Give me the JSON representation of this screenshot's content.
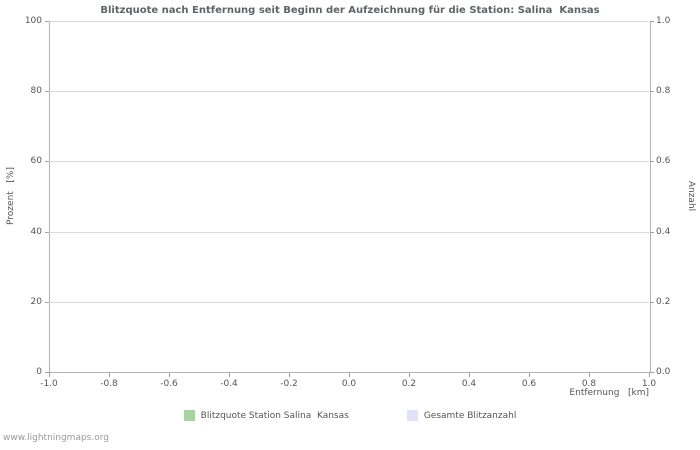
{
  "title": "Blitzquote nach Entfernung seit Beginn der Aufzeichnung für die Station: Salina  Kansas",
  "watermark": "www.lightningmaps.org",
  "axes": {
    "x_label": "Entfernung   [km]",
    "y_left_label": "Prozent   [%]",
    "y_right_label": "Anzahl"
  },
  "legend": [
    {
      "label": "Blitzquote Station Salina  Kansas",
      "color": "#a6d3a0"
    },
    {
      "label": "Gesamte Blitzanzahl",
      "color": "#e3e1f7"
    }
  ],
  "colors": {
    "grid": "#d9d9d9",
    "axis": "#b4b4b4",
    "tick": "#a0a0a0",
    "text": "#555555",
    "title": "#5d6568",
    "watermark": "#9a9a9a"
  },
  "chart_data": {
    "type": "line",
    "title": "Blitzquote nach Entfernung seit Beginn der Aufzeichnung für die Station: Salina  Kansas",
    "xlabel": "Entfernung [km]",
    "ylabel_left": "Prozent [%]",
    "ylabel_right": "Anzahl",
    "xlim": [
      -1.0,
      1.0
    ],
    "x_ticks": [
      -1.0,
      -0.8,
      -0.6,
      -0.4,
      -0.2,
      0.0,
      0.2,
      0.4,
      0.6,
      0.8,
      1.0
    ],
    "x_tick_labels": [
      "-1.0",
      "-0.8",
      "-0.6",
      "-0.4",
      "-0.2",
      "0.0",
      "0.2",
      "0.4",
      "0.6",
      "0.8",
      "1.0"
    ],
    "y_left_lim": [
      0,
      100
    ],
    "y_left_ticks": [
      0,
      20,
      40,
      60,
      80,
      100
    ],
    "y_left_tick_labels": [
      "0",
      "20",
      "40",
      "60",
      "80",
      "100"
    ],
    "y_right_lim": [
      0.0,
      1.0
    ],
    "y_right_ticks": [
      0.0,
      0.2,
      0.4,
      0.6,
      0.8,
      1.0
    ],
    "y_right_tick_labels": [
      "0.0",
      "0.2",
      "0.4",
      "0.6",
      "0.8",
      "1.0"
    ],
    "grid": true,
    "legend_position": "bottom",
    "series": [
      {
        "name": "Blitzquote Station Salina Kansas",
        "color": "#a6d3a0",
        "x": [],
        "values": []
      },
      {
        "name": "Gesamte Blitzanzahl",
        "color": "#e3e1f7",
        "x": [],
        "values": []
      }
    ]
  }
}
